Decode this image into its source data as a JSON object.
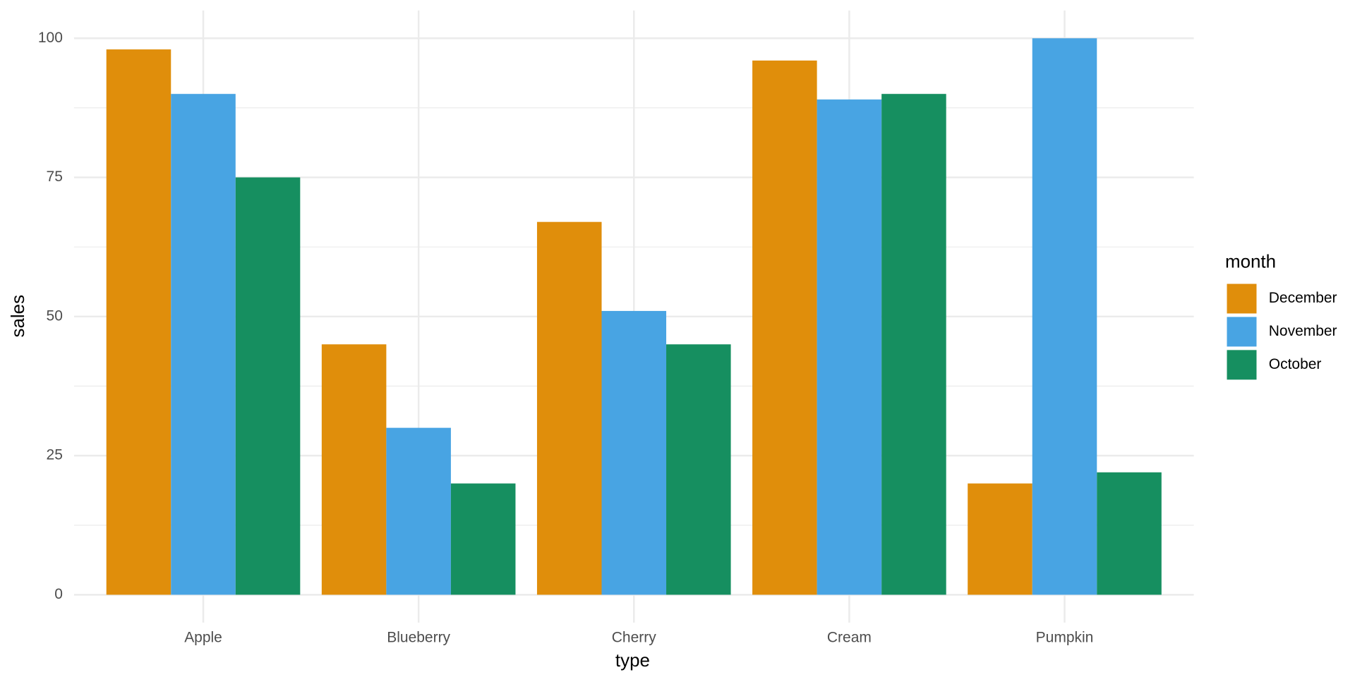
{
  "chart_data": {
    "type": "bar",
    "x_label": "type",
    "y_label": "sales",
    "legend_title": "month",
    "categories": [
      "Apple",
      "Blueberry",
      "Cherry",
      "Cream",
      "Pumpkin"
    ],
    "series": [
      {
        "name": "December",
        "color": "#E08E0B",
        "values": [
          98,
          45,
          67,
          96,
          20
        ]
      },
      {
        "name": "November",
        "color": "#48A4E3",
        "values": [
          90,
          30,
          51,
          89,
          100
        ]
      },
      {
        "name": "October",
        "color": "#168F60",
        "values": [
          75,
          20,
          45,
          90,
          22
        ]
      }
    ],
    "ylim": [
      -5,
      105
    ],
    "yticks": [
      0,
      25,
      50,
      75,
      100
    ],
    "grid": true,
    "legend_position": "right"
  }
}
